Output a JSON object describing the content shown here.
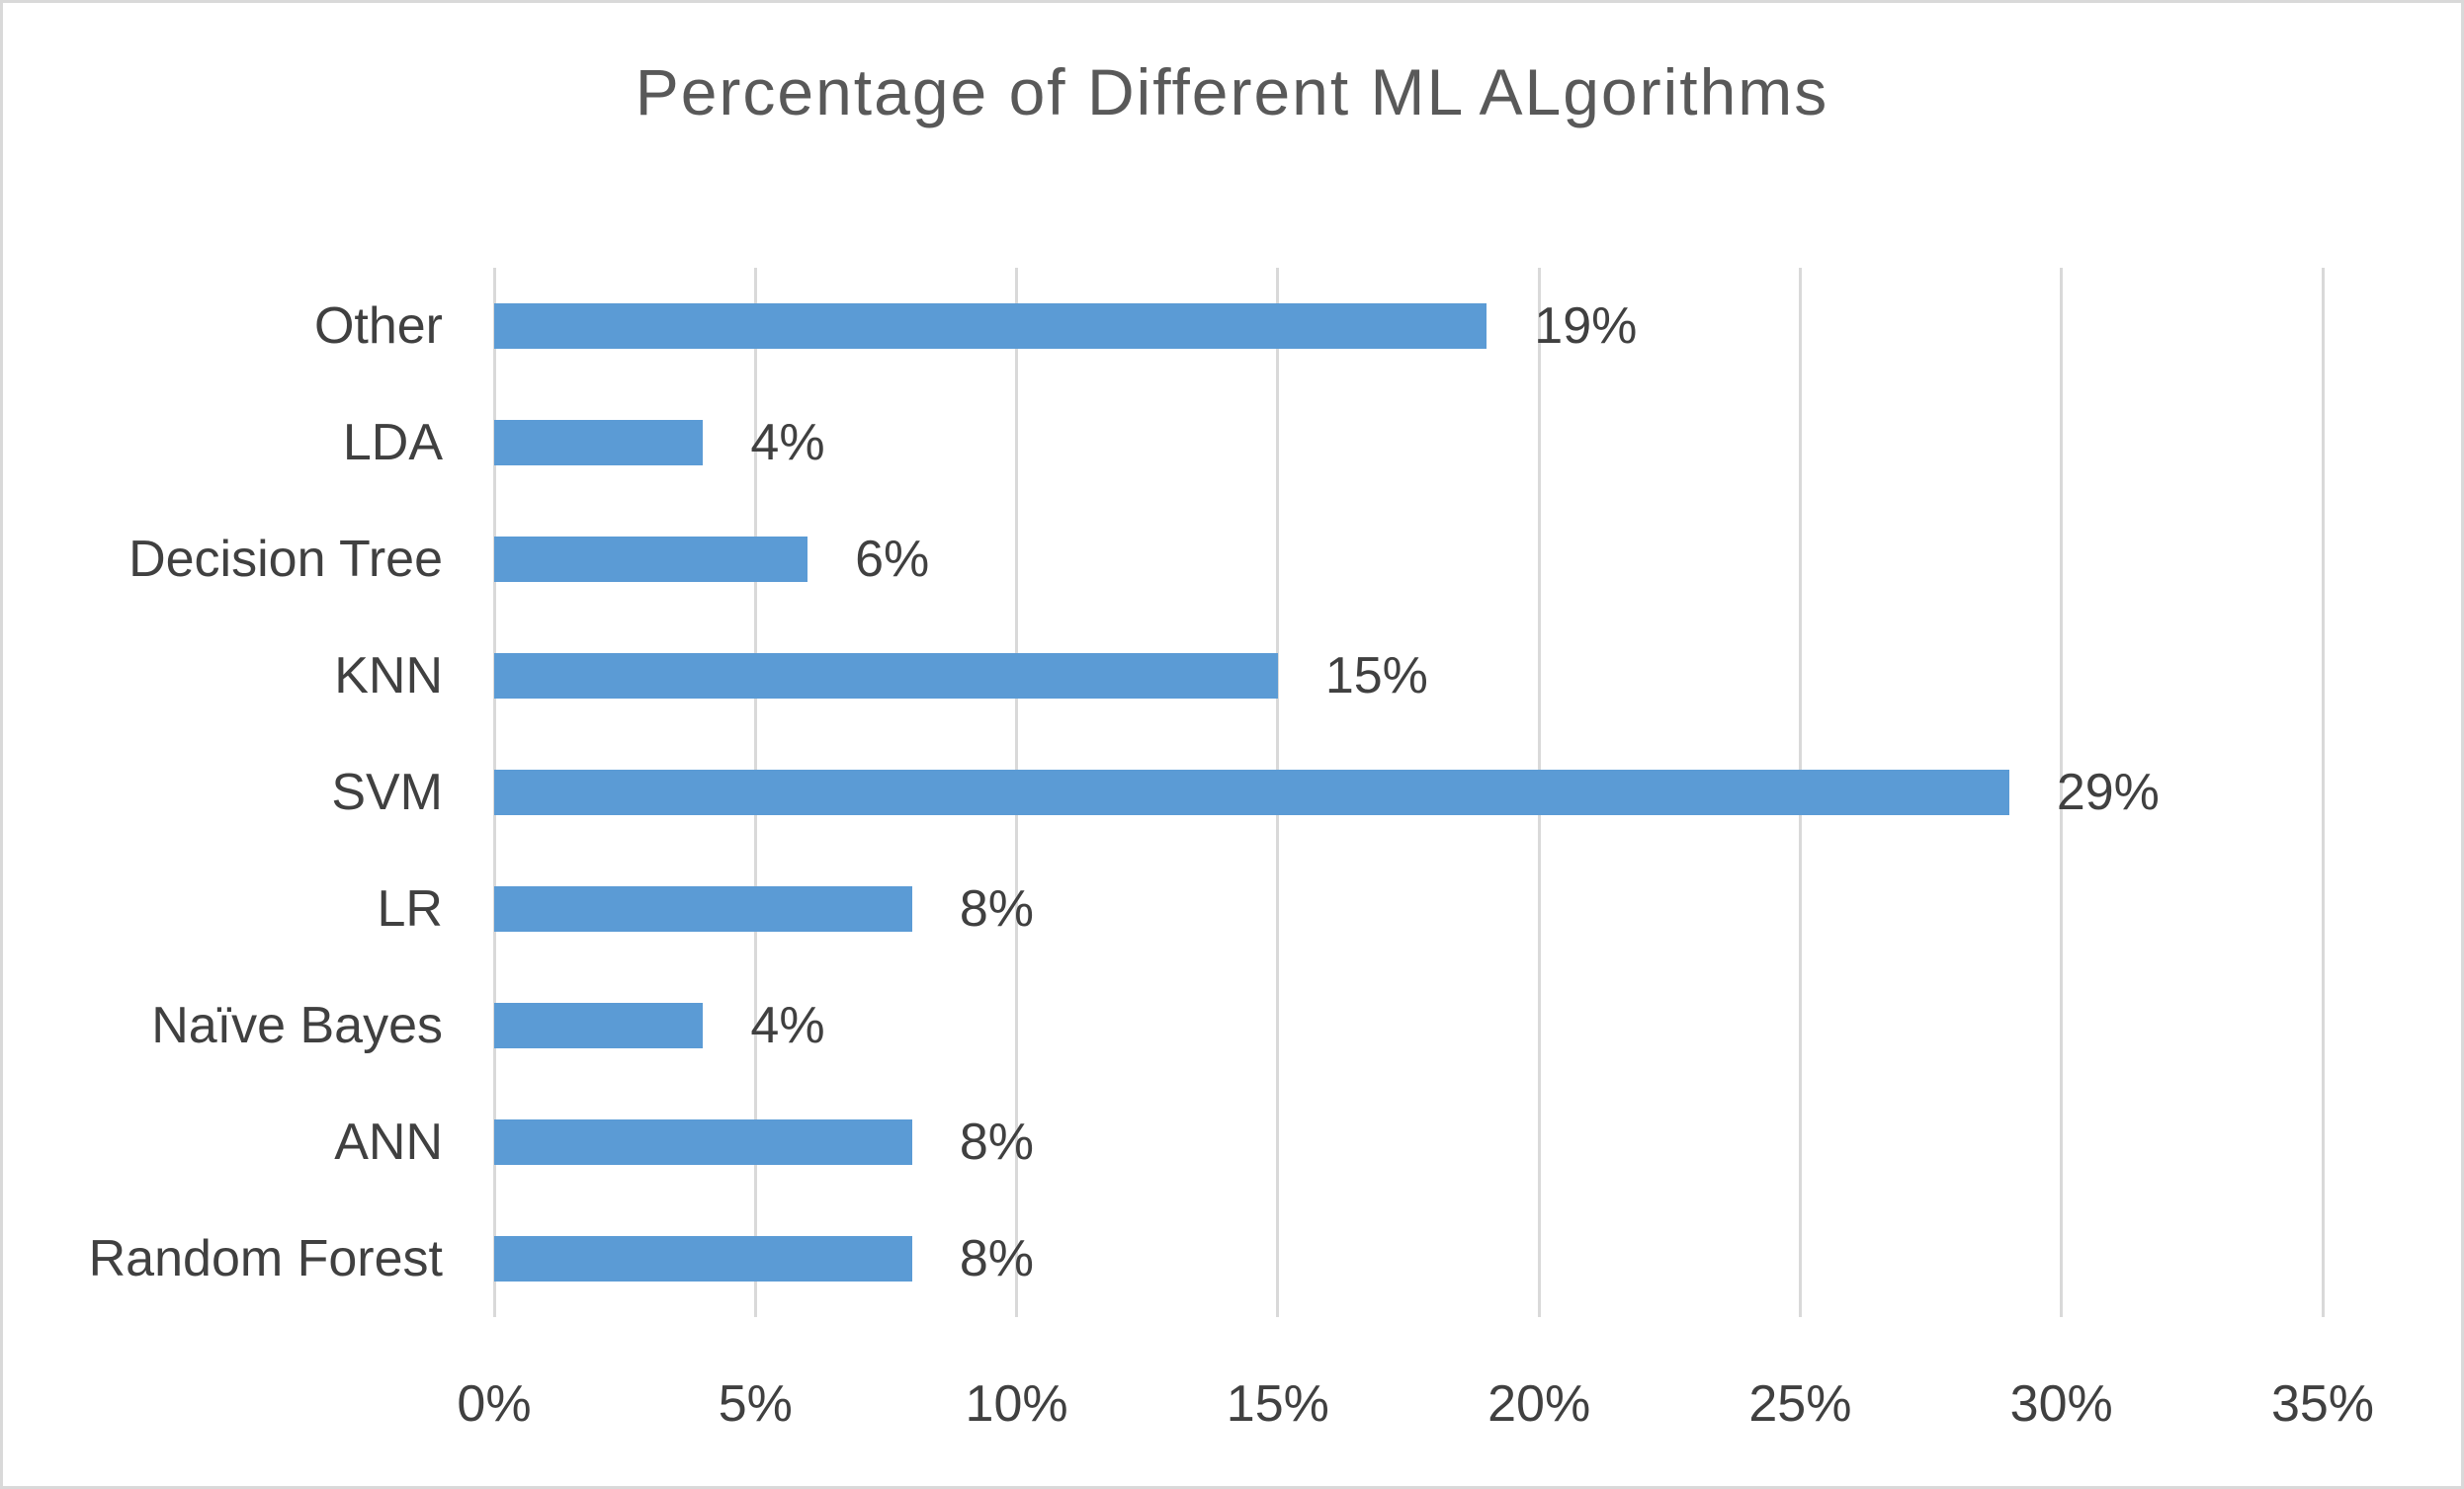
{
  "chart_data": {
    "type": "bar",
    "orientation": "horizontal",
    "title": "Percentage of Different ML ALgorithms",
    "categories": [
      "Other",
      "LDA",
      "Decision Tree",
      "KNN",
      "SVM",
      "LR",
      "Naïve Bayes",
      "ANN",
      "Random Forest"
    ],
    "values": [
      19,
      4,
      6,
      15,
      29,
      8,
      4,
      8,
      8
    ],
    "value_labels": [
      "19%",
      "4%",
      "6%",
      "15%",
      "29%",
      "8%",
      "4%",
      "8%",
      "8%"
    ],
    "x_ticks": [
      "0%",
      "5%",
      "10%",
      "15%",
      "20%",
      "25%",
      "30%",
      "35%"
    ],
    "x_tick_values": [
      0,
      5,
      10,
      15,
      20,
      25,
      30,
      35
    ],
    "xlim": [
      0,
      35
    ],
    "grid": true,
    "legend": "none",
    "xlabel": "",
    "ylabel": "",
    "colors": {
      "bar": "#5B9BD5",
      "title_text": "#595959",
      "axis_text": "#404040",
      "gridline": "#D9D9D9",
      "chart_border": "#D9D9D9",
      "background": "#FFFFFF"
    }
  }
}
